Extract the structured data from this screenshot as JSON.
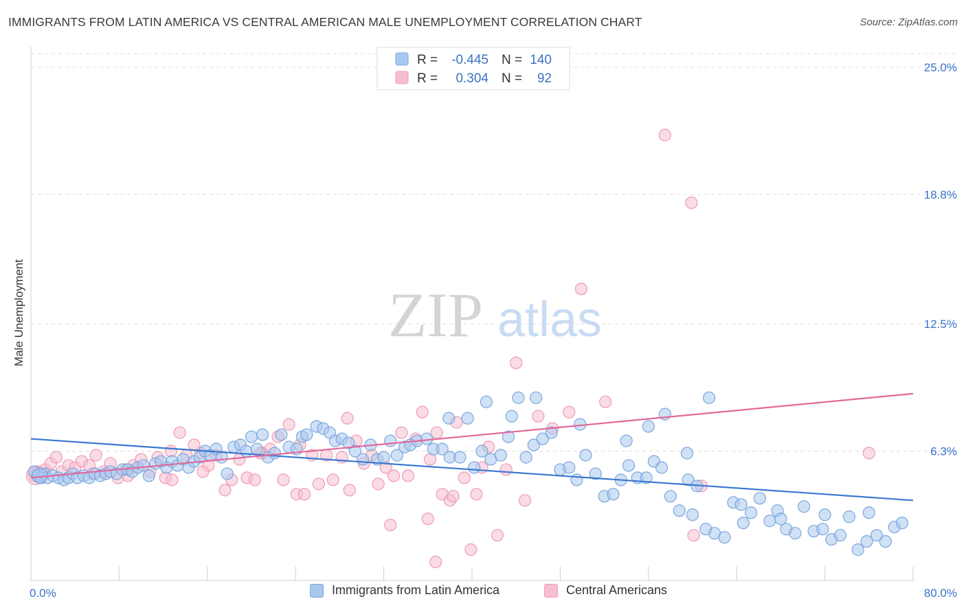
{
  "title": "IMMIGRANTS FROM LATIN AMERICA VS CENTRAL AMERICAN MALE UNEMPLOYMENT CORRELATION CHART",
  "source": "Source: ZipAtlas.com",
  "watermark": {
    "zip": "ZIP",
    "atlas": "atlas"
  },
  "legend_top": [
    {
      "r_label": "R =",
      "r_value": "-0.445",
      "n_label": "N =",
      "n_value": "140"
    },
    {
      "r_label": "R =",
      "r_value": "0.304",
      "n_label": "N =",
      "n_value": "92"
    }
  ],
  "legend_bottom": [
    {
      "label": "Immigrants from Latin America"
    },
    {
      "label": "Central Americans"
    }
  ],
  "colors": {
    "blue_fill": "#a9c8ef",
    "blue_stroke": "#7aa6dd",
    "blue_line": "#3a78d0",
    "pink_fill": "#f6bfd0",
    "pink_stroke": "#ee9ab5",
    "pink_line": "#e2679a",
    "axis_text": "#3a72c4",
    "grid": "#dddddd"
  },
  "chart_data": {
    "type": "scatter",
    "title": "IMMIGRANTS FROM LATIN AMERICA VS CENTRAL AMERICAN MALE UNEMPLOYMENT CORRELATION CHART",
    "xlabel": "",
    "ylabel": "Male Unemployment",
    "xlim": [
      0,
      80
    ],
    "ylim": [
      0,
      25
    ],
    "x_tick_labels": [
      "0.0%",
      "80.0%"
    ],
    "y_ticks": [
      6.3,
      12.5,
      18.8,
      25.0
    ],
    "y_tick_labels": [
      "6.3%",
      "12.5%",
      "18.8%",
      "25.0%"
    ],
    "grid": true,
    "legend_position": "top-center",
    "series": [
      {
        "name": "Immigrants from Latin America",
        "color": "#a9c8ef",
        "trend": {
          "x": [
            0,
            80
          ],
          "y": [
            6.9,
            3.9
          ]
        },
        "points": [
          [
            0.3,
            5.3
          ],
          [
            0.6,
            5.1
          ],
          [
            0.9,
            5.0
          ],
          [
            1.2,
            5.2
          ],
          [
            1.5,
            5.0
          ],
          [
            2.0,
            5.1
          ],
          [
            2.5,
            5.0
          ],
          [
            3.0,
            4.9
          ],
          [
            3.4,
            5.0
          ],
          [
            3.8,
            5.2
          ],
          [
            4.2,
            5.0
          ],
          [
            4.8,
            5.1
          ],
          [
            5.3,
            5.0
          ],
          [
            5.8,
            5.2
          ],
          [
            6.3,
            5.1
          ],
          [
            6.8,
            5.2
          ],
          [
            7.2,
            5.3
          ],
          [
            7.8,
            5.2
          ],
          [
            8.3,
            5.4
          ],
          [
            8.8,
            5.4
          ],
          [
            9.2,
            5.3
          ],
          [
            9.7,
            5.5
          ],
          [
            10.2,
            5.6
          ],
          [
            10.7,
            5.1
          ],
          [
            11.3,
            5.7
          ],
          [
            11.8,
            5.8
          ],
          [
            12.3,
            5.5
          ],
          [
            12.8,
            5.8
          ],
          [
            13.3,
            5.6
          ],
          [
            13.8,
            5.9
          ],
          [
            14.3,
            5.5
          ],
          [
            14.8,
            5.8
          ],
          [
            15.3,
            6.0
          ],
          [
            15.8,
            6.3
          ],
          [
            16.3,
            6.1
          ],
          [
            16.8,
            6.4
          ],
          [
            17.3,
            6.0
          ],
          [
            17.8,
            5.2
          ],
          [
            18.4,
            6.5
          ],
          [
            19.0,
            6.6
          ],
          [
            19.5,
            6.3
          ],
          [
            20.0,
            7.0
          ],
          [
            20.5,
            6.4
          ],
          [
            21.0,
            7.1
          ],
          [
            21.5,
            6.0
          ],
          [
            22.1,
            6.2
          ],
          [
            22.7,
            7.1
          ],
          [
            23.4,
            6.5
          ],
          [
            24.1,
            6.4
          ],
          [
            24.6,
            7.0
          ],
          [
            25.0,
            7.1
          ],
          [
            25.9,
            7.5
          ],
          [
            26.5,
            7.4
          ],
          [
            27.1,
            7.2
          ],
          [
            27.6,
            6.8
          ],
          [
            28.2,
            6.9
          ],
          [
            28.8,
            6.7
          ],
          [
            29.4,
            6.3
          ],
          [
            30.1,
            5.9
          ],
          [
            30.8,
            6.6
          ],
          [
            31.4,
            5.9
          ],
          [
            32.0,
            6.0
          ],
          [
            32.6,
            6.8
          ],
          [
            33.2,
            6.1
          ],
          [
            33.9,
            6.5
          ],
          [
            34.4,
            6.6
          ],
          [
            35.0,
            6.8
          ],
          [
            35.9,
            6.9
          ],
          [
            36.5,
            6.4
          ],
          [
            37.3,
            6.4
          ],
          [
            38.0,
            6.0
          ],
          [
            38.9,
            6.0
          ],
          [
            39.6,
            7.9
          ],
          [
            40.2,
            5.5
          ],
          [
            40.9,
            6.3
          ],
          [
            41.7,
            5.9
          ],
          [
            42.6,
            6.1
          ],
          [
            43.3,
            7.0
          ],
          [
            44.2,
            8.9
          ],
          [
            44.9,
            6.0
          ],
          [
            45.6,
            6.6
          ],
          [
            46.4,
            6.9
          ],
          [
            47.2,
            7.2
          ],
          [
            48.0,
            5.4
          ],
          [
            48.8,
            5.5
          ],
          [
            49.5,
            4.9
          ],
          [
            50.3,
            6.1
          ],
          [
            51.2,
            5.2
          ],
          [
            52.0,
            4.1
          ],
          [
            52.8,
            4.2
          ],
          [
            53.5,
            4.9
          ],
          [
            54.2,
            5.6
          ],
          [
            55.0,
            5.0
          ],
          [
            55.8,
            5.0
          ],
          [
            56.5,
            5.8
          ],
          [
            57.2,
            5.5
          ],
          [
            58.0,
            4.1
          ],
          [
            58.8,
            3.4
          ],
          [
            59.6,
            4.9
          ],
          [
            60.4,
            4.6
          ],
          [
            61.2,
            2.5
          ],
          [
            62.0,
            2.3
          ],
          [
            62.9,
            2.1
          ],
          [
            63.7,
            3.8
          ],
          [
            64.4,
            3.7
          ],
          [
            65.3,
            3.3
          ],
          [
            66.1,
            4.0
          ],
          [
            67.0,
            2.9
          ],
          [
            67.7,
            3.4
          ],
          [
            68.5,
            2.5
          ],
          [
            69.3,
            2.3
          ],
          [
            70.1,
            3.6
          ],
          [
            71.0,
            2.4
          ],
          [
            71.8,
            2.5
          ],
          [
            72.6,
            2.0
          ],
          [
            73.4,
            2.2
          ],
          [
            74.2,
            3.1
          ],
          [
            75.0,
            1.5
          ],
          [
            75.8,
            1.9
          ],
          [
            76.7,
            2.2
          ],
          [
            77.5,
            1.9
          ],
          [
            78.3,
            2.6
          ],
          [
            79.0,
            2.8
          ],
          [
            76.0,
            3.3
          ],
          [
            72.0,
            3.2
          ],
          [
            68.0,
            3.0
          ],
          [
            64.6,
            2.8
          ],
          [
            60.0,
            3.2
          ],
          [
            56.0,
            7.5
          ],
          [
            57.5,
            8.1
          ],
          [
            61.5,
            8.9
          ],
          [
            59.5,
            6.2
          ],
          [
            54.0,
            6.8
          ],
          [
            49.8,
            7.6
          ],
          [
            45.8,
            8.9
          ],
          [
            43.6,
            8.0
          ],
          [
            41.3,
            8.7
          ],
          [
            37.9,
            7.9
          ]
        ]
      },
      {
        "name": "Central Americans",
        "color": "#f6bfd0",
        "trend": {
          "x": [
            0,
            80
          ],
          "y": [
            5.0,
            9.1
          ]
        },
        "points": [
          [
            0.3,
            5.1
          ],
          [
            0.6,
            5.3
          ],
          [
            0.9,
            5.0
          ],
          [
            1.3,
            5.4
          ],
          [
            1.8,
            5.7
          ],
          [
            2.3,
            6.0
          ],
          [
            2.8,
            5.3
          ],
          [
            3.4,
            5.6
          ],
          [
            4.0,
            5.5
          ],
          [
            4.6,
            5.8
          ],
          [
            5.3,
            5.6
          ],
          [
            5.9,
            6.1
          ],
          [
            6.6,
            5.3
          ],
          [
            7.2,
            5.7
          ],
          [
            7.9,
            5.0
          ],
          [
            8.6,
            5.4
          ],
          [
            9.3,
            5.6
          ],
          [
            10.0,
            5.9
          ],
          [
            10.8,
            5.3
          ],
          [
            11.5,
            6.0
          ],
          [
            12.2,
            5.0
          ],
          [
            12.8,
            4.9
          ],
          [
            13.5,
            7.2
          ],
          [
            14.1,
            6.1
          ],
          [
            14.8,
            6.6
          ],
          [
            15.4,
            6.2
          ],
          [
            16.1,
            5.6
          ],
          [
            16.8,
            6.1
          ],
          [
            17.6,
            4.4
          ],
          [
            18.2,
            4.9
          ],
          [
            18.9,
            5.9
          ],
          [
            19.6,
            5.0
          ],
          [
            20.3,
            4.9
          ],
          [
            21.0,
            6.2
          ],
          [
            21.7,
            6.4
          ],
          [
            22.4,
            7.0
          ],
          [
            22.9,
            4.9
          ],
          [
            23.4,
            7.6
          ],
          [
            24.1,
            4.2
          ],
          [
            24.8,
            4.2
          ],
          [
            25.5,
            6.1
          ],
          [
            26.1,
            4.7
          ],
          [
            26.8,
            6.1
          ],
          [
            27.4,
            4.9
          ],
          [
            28.2,
            6.0
          ],
          [
            28.9,
            4.4
          ],
          [
            29.5,
            6.8
          ],
          [
            30.2,
            5.7
          ],
          [
            30.9,
            6.1
          ],
          [
            31.5,
            4.7
          ],
          [
            32.2,
            5.5
          ],
          [
            32.9,
            5.1
          ],
          [
            33.6,
            7.2
          ],
          [
            34.2,
            5.1
          ],
          [
            34.9,
            6.9
          ],
          [
            35.5,
            8.2
          ],
          [
            36.2,
            5.9
          ],
          [
            36.8,
            7.2
          ],
          [
            37.3,
            4.2
          ],
          [
            38.0,
            3.9
          ],
          [
            38.6,
            7.7
          ],
          [
            39.3,
            5.0
          ],
          [
            39.9,
            1.5
          ],
          [
            40.4,
            4.2
          ],
          [
            40.9,
            5.5
          ],
          [
            41.5,
            6.5
          ],
          [
            42.3,
            2.2
          ],
          [
            43.1,
            5.4
          ],
          [
            44.0,
            10.6
          ],
          [
            44.8,
            3.9
          ],
          [
            46.0,
            8.0
          ],
          [
            47.3,
            7.4
          ],
          [
            48.8,
            8.2
          ],
          [
            49.9,
            14.2
          ],
          [
            52.1,
            8.7
          ],
          [
            57.5,
            21.7
          ],
          [
            59.9,
            18.4
          ],
          [
            60.8,
            4.6
          ],
          [
            60.1,
            2.2
          ],
          [
            38.3,
            4.1
          ],
          [
            36.0,
            3.0
          ],
          [
            32.6,
            2.7
          ],
          [
            28.7,
            7.9
          ],
          [
            24.4,
            6.6
          ],
          [
            20.8,
            6.2
          ],
          [
            15.6,
            5.3
          ],
          [
            12.7,
            6.3
          ],
          [
            8.8,
            5.1
          ],
          [
            5.6,
            5.2
          ],
          [
            1.0,
            5.2
          ],
          [
            76.0,
            6.2
          ],
          [
            36.7,
            0.9
          ]
        ]
      }
    ]
  }
}
